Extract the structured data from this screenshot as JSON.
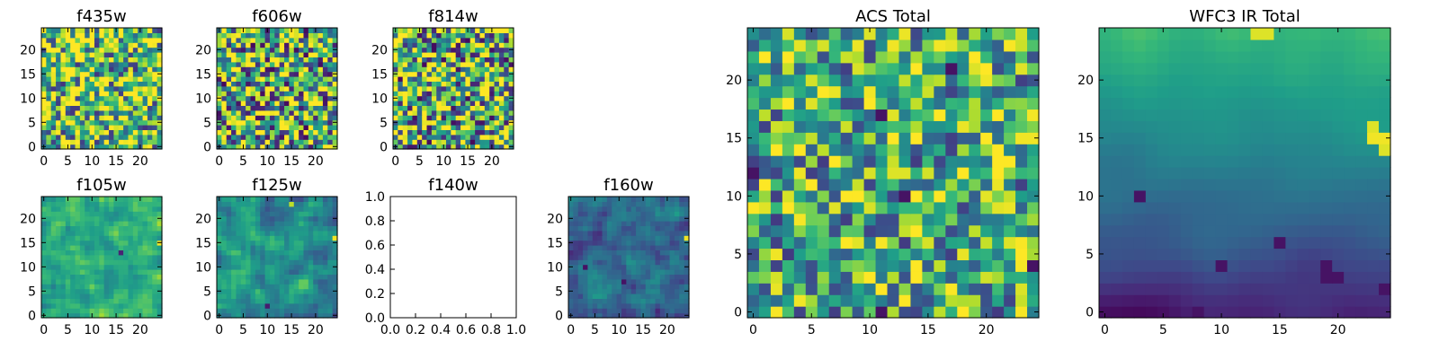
{
  "figure": {
    "background": "#ffffff",
    "colormap": "viridis"
  },
  "chart_data": [
    {
      "id": "f435w",
      "type": "heatmap",
      "title": "f435w",
      "grid_size": 25,
      "xlim": [
        -0.5,
        24.5
      ],
      "ylim": [
        -0.5,
        24.5
      ],
      "xticks": [
        0,
        5,
        10,
        15,
        20
      ],
      "yticks": [
        0,
        5,
        10,
        15,
        20
      ],
      "texture": "noise",
      "noise": 0.55,
      "mean": 0.7,
      "seed": 11,
      "hotspots": [
        {
          "x": 23,
          "y": 21,
          "v": 0.98
        },
        {
          "x": 18,
          "y": 14,
          "v": 0.95
        }
      ]
    },
    {
      "id": "f606w",
      "type": "heatmap",
      "title": "f606w",
      "grid_size": 25,
      "xlim": [
        -0.5,
        24.5
      ],
      "ylim": [
        -0.5,
        24.5
      ],
      "xticks": [
        0,
        5,
        10,
        15,
        20
      ],
      "yticks": [
        0,
        5,
        10,
        15,
        20
      ],
      "texture": "noise",
      "noise": 0.6,
      "mean": 0.62,
      "seed": 23,
      "hotspots": [
        {
          "x": 11,
          "y": 14,
          "v": 0.98
        },
        {
          "x": 24,
          "y": 15,
          "v": 0.95
        }
      ]
    },
    {
      "id": "f814w",
      "type": "heatmap",
      "title": "f814w",
      "grid_size": 25,
      "xlim": [
        -0.5,
        24.5
      ],
      "ylim": [
        -0.5,
        24.5
      ],
      "xticks": [
        0,
        5,
        10,
        15,
        20
      ],
      "yticks": [
        0,
        5,
        10,
        15,
        20
      ],
      "texture": "noise",
      "noise": 0.6,
      "mean": 0.62,
      "seed": 37,
      "hotspots": [
        {
          "x": 24,
          "y": 16,
          "v": 0.98
        },
        {
          "x": 12,
          "y": 12,
          "v": 0.95
        },
        {
          "x": 22,
          "y": 3,
          "v": 0.95
        }
      ]
    },
    {
      "id": "f105w",
      "type": "heatmap",
      "title": "f105w",
      "grid_size": 25,
      "xlim": [
        -0.5,
        24.5
      ],
      "ylim": [
        -0.5,
        24.5
      ],
      "xticks": [
        0,
        5,
        10,
        15,
        20
      ],
      "yticks": [
        0,
        5,
        10,
        15,
        20
      ],
      "texture": "smooth",
      "noise": 0.4,
      "mean": 0.62,
      "seed": 41,
      "hotspots": [
        {
          "x": 24,
          "y": 15,
          "v": 0.98
        },
        {
          "x": 16,
          "y": 13,
          "v": 0.1
        }
      ]
    },
    {
      "id": "f125w",
      "type": "heatmap",
      "title": "f125w",
      "grid_size": 25,
      "xlim": [
        -0.5,
        24.5
      ],
      "ylim": [
        -0.5,
        24.5
      ],
      "xticks": [
        0,
        5,
        10,
        15,
        20
      ],
      "yticks": [
        0,
        5,
        10,
        15,
        20
      ],
      "texture": "smooth",
      "noise": 0.45,
      "mean": 0.5,
      "seed": 53,
      "hotspots": [
        {
          "x": 24,
          "y": 16,
          "v": 0.98
        },
        {
          "x": 15,
          "y": 23,
          "v": 0.9
        },
        {
          "x": 10,
          "y": 2,
          "v": 0.08
        }
      ]
    },
    {
      "id": "f140w",
      "type": "empty",
      "title": "f140w",
      "xlim": [
        0,
        1
      ],
      "ylim": [
        0,
        1
      ],
      "xtick_labels": [
        "0.0",
        "0.2",
        "0.4",
        "0.6",
        "0.8",
        "1.0"
      ],
      "ytick_labels": [
        "0.0",
        "0.2",
        "0.4",
        "0.6",
        "0.8",
        "1.0"
      ]
    },
    {
      "id": "f160w",
      "type": "heatmap",
      "title": "f160w",
      "grid_size": 25,
      "xlim": [
        -0.5,
        24.5
      ],
      "ylim": [
        -0.5,
        24.5
      ],
      "xticks": [
        0,
        5,
        10,
        15,
        20
      ],
      "yticks": [
        0,
        5,
        10,
        15,
        20
      ],
      "texture": "smooth",
      "noise": 0.4,
      "mean": 0.35,
      "seed": 67,
      "hotspots": [
        {
          "x": 24,
          "y": 16,
          "v": 0.98
        },
        {
          "x": 3,
          "y": 10,
          "v": 0.05
        },
        {
          "x": 11,
          "y": 7,
          "v": 0.05
        }
      ]
    },
    {
      "id": "acs_total",
      "type": "heatmap",
      "title": "ACS Total",
      "grid_size": 25,
      "xlim": [
        -0.5,
        24.5
      ],
      "ylim": [
        -0.5,
        24.5
      ],
      "xticks": [
        0,
        5,
        10,
        15,
        20
      ],
      "yticks": [
        0,
        5,
        10,
        15,
        20
      ],
      "texture": "noise",
      "noise": 0.45,
      "mean": 0.62,
      "seed": 79,
      "hotspots": [
        {
          "x": 23,
          "y": 15,
          "v": 0.98
        },
        {
          "x": 24,
          "y": 15,
          "v": 0.98
        },
        {
          "x": 12,
          "y": 12,
          "v": 0.95
        },
        {
          "x": 13,
          "y": 12,
          "v": 0.95
        },
        {
          "x": 12,
          "y": 13,
          "v": 0.92
        },
        {
          "x": 0,
          "y": 12,
          "v": 0.05
        },
        {
          "x": 11,
          "y": 17,
          "v": 0.05
        },
        {
          "x": 17,
          "y": 21,
          "v": 0.05
        },
        {
          "x": 11,
          "y": 0,
          "v": 0.05
        },
        {
          "x": 13,
          "y": 10,
          "v": 0.05
        },
        {
          "x": 24,
          "y": 4,
          "v": 0.05
        },
        {
          "x": 2,
          "y": 5,
          "v": 0.98
        }
      ]
    },
    {
      "id": "wfc3_ir_total",
      "type": "heatmap",
      "title": "WFC3 IR Total",
      "grid_size": 25,
      "xlim": [
        -0.5,
        24.5
      ],
      "ylim": [
        -0.5,
        24.5
      ],
      "xticks": [
        0,
        5,
        10,
        15,
        20
      ],
      "yticks": [
        0,
        5,
        10,
        15,
        20
      ],
      "texture": "gradient",
      "noise": 0.18,
      "mean": 0.4,
      "seed": 97,
      "hotspots": [
        {
          "x": 23,
          "y": 15,
          "v": 0.98
        },
        {
          "x": 24,
          "y": 15,
          "v": 0.98
        },
        {
          "x": 23,
          "y": 16,
          "v": 0.95
        },
        {
          "x": 24,
          "y": 14,
          "v": 0.95
        },
        {
          "x": 13,
          "y": 24,
          "v": 0.95
        },
        {
          "x": 14,
          "y": 24,
          "v": 0.95
        },
        {
          "x": 3,
          "y": 10,
          "v": 0.05
        },
        {
          "x": 8,
          "y": 0,
          "v": 0.05
        },
        {
          "x": 19,
          "y": 3,
          "v": 0.05
        },
        {
          "x": 20,
          "y": 3,
          "v": 0.05
        },
        {
          "x": 19,
          "y": 4,
          "v": 0.05
        },
        {
          "x": 24,
          "y": 2,
          "v": 0.05
        },
        {
          "x": 10,
          "y": 4,
          "v": 0.05
        },
        {
          "x": 15,
          "y": 6,
          "v": 0.05
        }
      ]
    }
  ]
}
